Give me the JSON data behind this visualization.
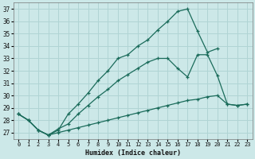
{
  "xlabel": "Humidex (Indice chaleur)",
  "bg_color": "#cce8e8",
  "grid_color": "#b0d4d4",
  "line_color": "#1a6b5a",
  "xlim": [
    -0.5,
    23.5
  ],
  "ylim": [
    26.5,
    37.5
  ],
  "xticks": [
    0,
    1,
    2,
    3,
    4,
    5,
    6,
    7,
    8,
    9,
    10,
    11,
    12,
    13,
    14,
    15,
    16,
    17,
    18,
    19,
    20,
    21,
    22,
    23
  ],
  "yticks": [
    27,
    28,
    29,
    30,
    31,
    32,
    33,
    34,
    35,
    36,
    37
  ],
  "curve_top_x": [
    0,
    1,
    2,
    3,
    4,
    5,
    6,
    7,
    8,
    9,
    10,
    11,
    12,
    13,
    14,
    15,
    16,
    17,
    18,
    19,
    20,
    21,
    22,
    23
  ],
  "curve_top_y": [
    28.5,
    28.0,
    27.2,
    26.8,
    27.2,
    28.5,
    29.3,
    30.2,
    31.2,
    32.0,
    33.0,
    33.3,
    34.0,
    34.5,
    35.3,
    36.0,
    36.8,
    37.0,
    35.2,
    33.5,
    33.8,
    null,
    null,
    null
  ],
  "curve_mid_x": [
    0,
    1,
    2,
    3,
    4,
    5,
    6,
    7,
    8,
    9,
    10,
    11,
    12,
    13,
    14,
    15,
    16,
    17,
    18,
    19,
    20,
    21,
    22,
    23
  ],
  "curve_mid_y": [
    28.5,
    28.0,
    27.2,
    26.8,
    27.3,
    27.7,
    28.5,
    29.2,
    29.9,
    30.5,
    31.2,
    31.7,
    32.2,
    32.7,
    33.0,
    33.0,
    32.2,
    31.5,
    33.3,
    33.3,
    31.6,
    29.3,
    29.2,
    29.3
  ],
  "curve_bot_x": [
    0,
    1,
    2,
    3,
    4,
    5,
    6,
    7,
    8,
    9,
    10,
    11,
    12,
    13,
    14,
    15,
    16,
    17,
    18,
    19,
    20,
    21,
    22,
    23
  ],
  "curve_bot_y": [
    28.5,
    28.0,
    27.2,
    26.8,
    27.0,
    27.2,
    27.4,
    27.6,
    27.8,
    28.0,
    28.2,
    28.4,
    28.6,
    28.8,
    29.0,
    29.2,
    29.4,
    29.6,
    29.7,
    29.9,
    30.0,
    29.3,
    29.2,
    29.3
  ]
}
